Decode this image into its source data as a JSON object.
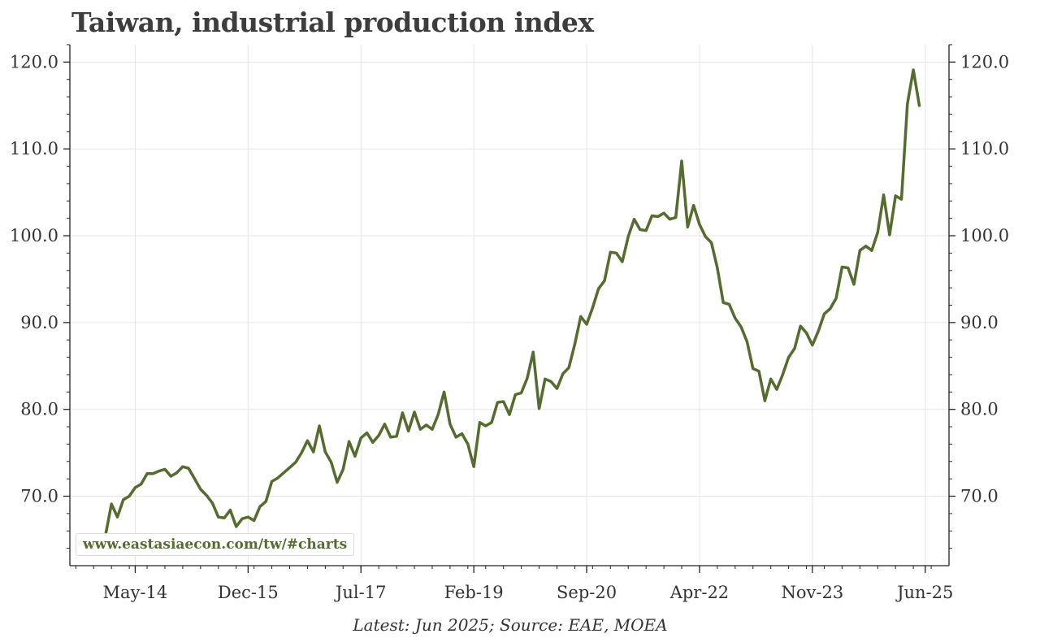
{
  "title": "Taiwan, industrial production index",
  "footnote": "Latest: Jun 2025; Source: EAE, MOEA",
  "watermark": "www.eastasiaecon.com/tw/#charts",
  "colors": {
    "line": "#556b2f",
    "grid": "#e6e6e6",
    "axis": "#222222",
    "text": "#333333"
  },
  "chart_data": {
    "type": "line",
    "title": "Taiwan, industrial production index",
    "xlabel": "",
    "ylabel": "",
    "start": "2013-12",
    "end": "2025-06",
    "frequency": "monthly",
    "xlim": [
      "2013-06",
      "2025-10"
    ],
    "ylim": [
      62.0,
      122.0
    ],
    "x_ticks": [
      {
        "label": "May-14",
        "date": "2014-05"
      },
      {
        "label": "Dec-15",
        "date": "2015-12"
      },
      {
        "label": "Jul-17",
        "date": "2017-07"
      },
      {
        "label": "Feb-19",
        "date": "2019-02"
      },
      {
        "label": "Sep-20",
        "date": "2020-09"
      },
      {
        "label": "Apr-22",
        "date": "2022-04"
      },
      {
        "label": "Nov-23",
        "date": "2023-11"
      },
      {
        "label": "Jun-25",
        "date": "2025-06"
      }
    ],
    "y_ticks": [
      {
        "label": "70.0",
        "value": 70
      },
      {
        "label": "80.0",
        "value": 80
      },
      {
        "label": "90.0",
        "value": 90
      },
      {
        "label": "100.0",
        "value": 100
      },
      {
        "label": "110.0",
        "value": 110
      },
      {
        "label": "120.0",
        "value": 120
      }
    ],
    "grid": true,
    "series": [
      {
        "name": "Industrial production index",
        "values": [
          65.5,
          69.1,
          67.6,
          69.6,
          70.0,
          71.0,
          71.4,
          72.6,
          72.6,
          72.9,
          73.1,
          72.3,
          72.7,
          73.4,
          73.2,
          72.0,
          70.8,
          70.1,
          69.2,
          67.6,
          67.5,
          68.4,
          66.5,
          67.4,
          67.6,
          67.2,
          68.8,
          69.4,
          71.7,
          72.1,
          72.7,
          73.3,
          73.9,
          75.0,
          76.4,
          75.1,
          78.1,
          75.1,
          73.9,
          71.6,
          73.1,
          76.3,
          74.6,
          76.7,
          77.3,
          76.2,
          77.0,
          78.3,
          76.8,
          76.9,
          79.6,
          77.5,
          79.7,
          77.7,
          78.2,
          77.7,
          79.4,
          82.0,
          78.3,
          76.8,
          77.2,
          76.0,
          73.4,
          78.5,
          78.1,
          78.5,
          80.8,
          80.9,
          79.4,
          81.7,
          81.9,
          83.6,
          86.6,
          80.1,
          83.5,
          83.2,
          82.4,
          84.1,
          84.8,
          87.5,
          90.7,
          89.8,
          91.7,
          93.9,
          94.8,
          98.1,
          98.0,
          97.0,
          99.9,
          101.9,
          100.7,
          100.6,
          102.3,
          102.2,
          102.6,
          101.9,
          102.1,
          108.6,
          101.0,
          103.5,
          101.3,
          99.9,
          99.2,
          96.3,
          92.3,
          92.1,
          90.5,
          89.5,
          87.8,
          84.7,
          84.4,
          81.0,
          83.5,
          82.3,
          84.0,
          86.0,
          87.0,
          89.6,
          88.8,
          87.4,
          89.0,
          91.0,
          91.6,
          92.8,
          96.4,
          96.3,
          94.4,
          98.3,
          98.8,
          98.3,
          100.4,
          104.7,
          100.1,
          104.6,
          104.2,
          115.2,
          119.1,
          115.0
        ]
      }
    ]
  }
}
